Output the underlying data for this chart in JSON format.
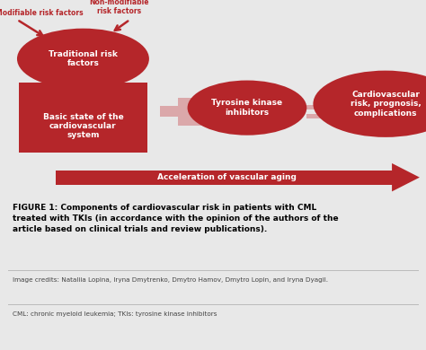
{
  "bg_color": "#e8e8e8",
  "white": "#ffffff",
  "red_color": "#b5262a",
  "light_red": "#dba8aa",
  "title_text": "FIGURE 1: Components of cardiovascular risk in patients with CML\ntreated with TKIs (in accordance with the opinion of the authors of the\narticle based on clinical trials and review publications).",
  "credits": "Image credits: Nataliia Lopina, Iryna Dmytrenko, Dmytro Hamov, Dmytro Lopin, and Iryna Dyagil.",
  "abbreviations": "CML: chronic myeloid leukemia; TKIs: tyrosine kinase inhibitors",
  "label_modifiable": "Modifiable risk factors",
  "label_nonmodifiable": "Non-modifiable\nrisk factors",
  "label_traditional": "Traditional risk\nfactors",
  "label_basic": "Basic state of the\ncardiovascular\nsystem",
  "label_tki": "Tyrosine kinase\ninhibitors",
  "label_cardio": "Cardiovascular\nrisk, prognosis,\ncomplications",
  "label_arrow": "Acceleration of vascular aging"
}
